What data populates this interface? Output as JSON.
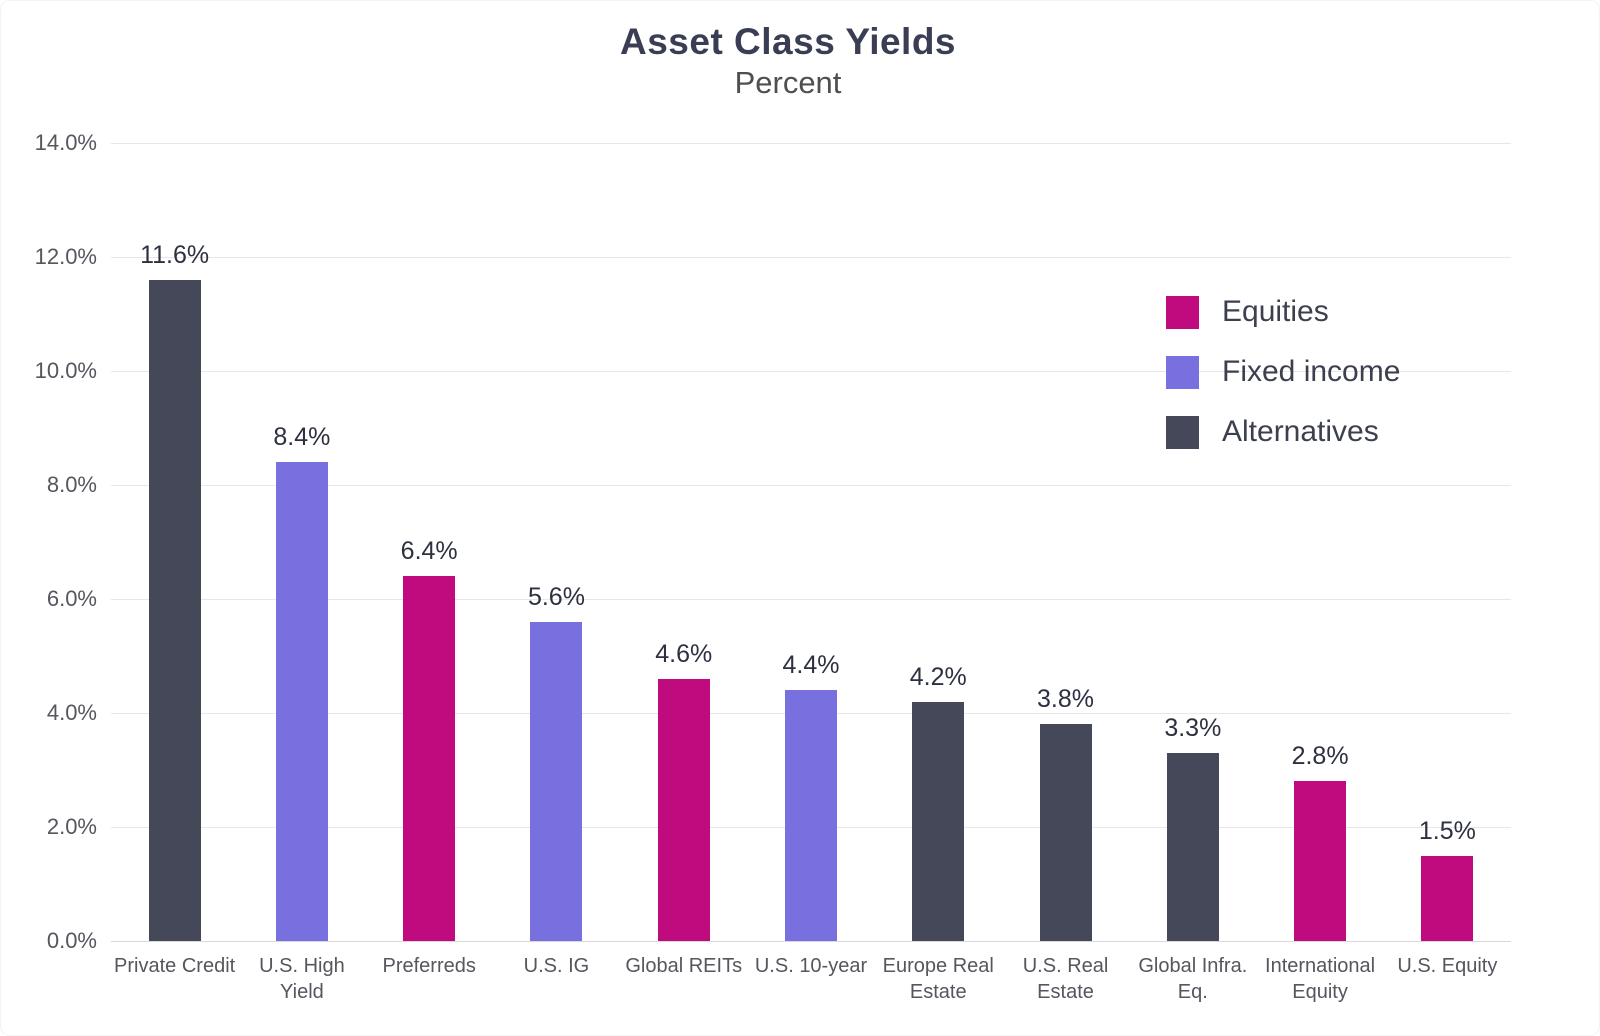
{
  "chart": {
    "title": "Asset Class Yields",
    "subtitle": "Percent"
  },
  "chart_data": {
    "type": "bar",
    "title": "Asset Class Yields",
    "subtitle": "Percent",
    "categories": [
      "Private Credit",
      "U.S. High Yield",
      "Preferreds",
      "U.S. IG",
      "Global REITs",
      "U.S. 10-year",
      "Europe Real Estate",
      "U.S. Real Estate",
      "Global Infra. Eq.",
      "International Equity",
      "U.S. Equity"
    ],
    "category_lines": [
      [
        "Private Credit"
      ],
      [
        "U.S. High",
        "Yield"
      ],
      [
        "Preferreds"
      ],
      [
        "U.S. IG"
      ],
      [
        "Global REITs"
      ],
      [
        "U.S. 10-year"
      ],
      [
        "Europe Real",
        "Estate"
      ],
      [
        "U.S. Real",
        "Estate"
      ],
      [
        "Global Infra.",
        "Eq."
      ],
      [
        "International",
        "Equity"
      ],
      [
        "U.S. Equity"
      ]
    ],
    "values": [
      11.6,
      8.4,
      6.4,
      5.6,
      4.6,
      4.4,
      4.2,
      3.8,
      3.3,
      2.8,
      1.5
    ],
    "value_labels": [
      "11.6%",
      "8.4%",
      "6.4%",
      "5.6%",
      "4.6%",
      "4.4%",
      "4.2%",
      "3.8%",
      "3.3%",
      "2.8%",
      "1.5%"
    ],
    "series_by_bar": [
      "Alternatives",
      "Fixed income",
      "Equities",
      "Fixed income",
      "Equities",
      "Fixed income",
      "Alternatives",
      "Alternatives",
      "Alternatives",
      "Equities",
      "Equities"
    ],
    "ylim": [
      0,
      14
    ],
    "ytick_step": 2,
    "ytick_labels": [
      "14.0%",
      "12.0%",
      "10.0%",
      "8.0%",
      "6.0%",
      "4.0%",
      "2.0%",
      "0.0%"
    ],
    "grid": true,
    "legend": {
      "position": "top-right",
      "entries": [
        {
          "label": "Equities",
          "color": "#c00b7f"
        },
        {
          "label": "Fixed income",
          "color": "#7770de"
        },
        {
          "label": "Alternatives",
          "color": "#454859"
        }
      ]
    }
  },
  "colors": {
    "equities": "#c00b7f",
    "fixed_income": "#7770de",
    "alternatives": "#454859",
    "gridline": "#e7e7e9",
    "axis_text": "#55565e",
    "title_text": "#3a3e54",
    "subtitle_text": "#4f4f52",
    "value_text": "#2d3040"
  }
}
